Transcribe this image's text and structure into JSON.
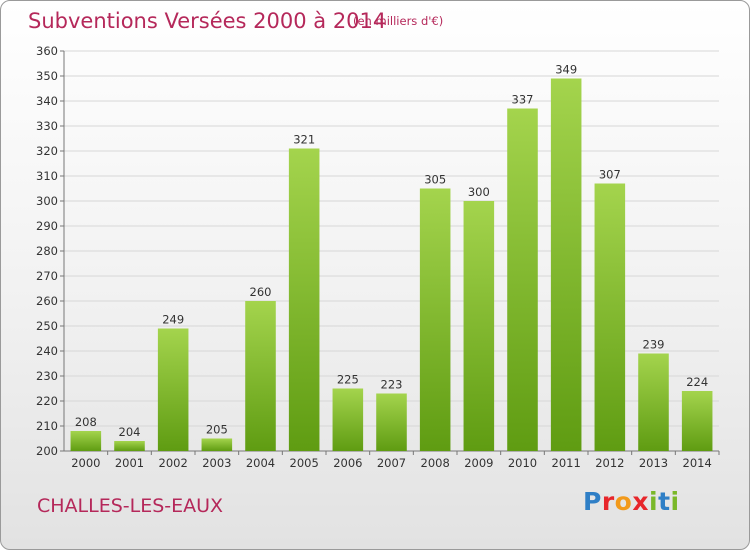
{
  "header": {
    "title": "Subventions Versées 2000 à 2014",
    "unit": "(en milliers d'€)"
  },
  "location": "CHALLES-LES-EAUX",
  "logo": {
    "letters": [
      "P",
      "r",
      "o",
      "x",
      "i",
      "t",
      "i"
    ],
    "colors": [
      "#2f7fc6",
      "#e7262b",
      "#f29a1b",
      "#e7262b",
      "#7ab829",
      "#2f7fc6",
      "#7ab829"
    ]
  },
  "colors": {
    "accent": "#b5285a",
    "bar_top": "#a4d44d",
    "bar_bottom": "#5f9c12",
    "grid": "#d7d7d7"
  },
  "chart_data": {
    "type": "bar",
    "categories": [
      "2000",
      "2001",
      "2002",
      "2003",
      "2004",
      "2005",
      "2006",
      "2007",
      "2008",
      "2009",
      "2010",
      "2011",
      "2012",
      "2013",
      "2014"
    ],
    "values": [
      208,
      204,
      249,
      205,
      260,
      321,
      225,
      223,
      305,
      300,
      337,
      349,
      307,
      239,
      224
    ],
    "title": "Subventions Versées 2000 à 2014",
    "subtitle": "(en milliers d'€)",
    "xlabel": "",
    "ylabel": "",
    "ylim": [
      200,
      360
    ],
    "yticks": [
      200,
      210,
      220,
      230,
      240,
      250,
      260,
      270,
      280,
      290,
      300,
      310,
      320,
      330,
      340,
      350,
      360
    ],
    "grid": true,
    "legend": "none",
    "data_labels": true
  }
}
